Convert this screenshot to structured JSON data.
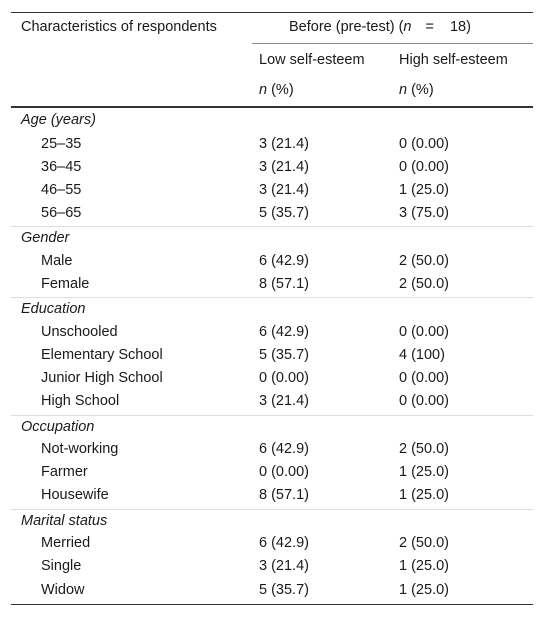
{
  "header": {
    "characteristics": "Characteristics of respondents",
    "before_prefix": "Before (pre-test) (",
    "n_symbol": "n",
    "equals": "=",
    "n_value": "18)",
    "low": "Low self-esteem",
    "high": "High self-esteem",
    "n_pct_n": "n",
    "n_pct_rest": " (%)"
  },
  "sections": [
    {
      "title": "Age (years)",
      "rows": [
        {
          "label": "25–35",
          "low": "3 (21.4)",
          "high": "0 (0.00)"
        },
        {
          "label": "36–45",
          "low": "3 (21.4)",
          "high": "0 (0.00)"
        },
        {
          "label": "46–55",
          "low": "3 (21.4)",
          "high": "1 (25.0)"
        },
        {
          "label": "56–65",
          "low": "5 (35.7)",
          "high": "3 (75.0)"
        }
      ]
    },
    {
      "title": "Gender",
      "rows": [
        {
          "label": "Male",
          "low": "6 (42.9)",
          "high": "2 (50.0)"
        },
        {
          "label": "Female",
          "low": "8 (57.1)",
          "high": "2 (50.0)"
        }
      ]
    },
    {
      "title": "Education",
      "rows": [
        {
          "label": "Unschooled",
          "low": "6 (42.9)",
          "high": "0 (0.00)"
        },
        {
          "label": "Elementary School",
          "low": "5 (35.7)",
          "high": "4 (100)"
        },
        {
          "label": "Junior High School",
          "low": "0 (0.00)",
          "high": "0 (0.00)"
        },
        {
          "label": "High School",
          "low": "3 (21.4)",
          "high": "0 (0.00)"
        }
      ]
    },
    {
      "title": "Occupation",
      "rows": [
        {
          "label": "Not-working",
          "low": "6 (42.9)",
          "high": "2 (50.0)"
        },
        {
          "label": "Farmer",
          "low": "0 (0.00)",
          "high": "1 (25.0)"
        },
        {
          "label": "Housewife",
          "low": "8 (57.1)",
          "high": "1 (25.0)"
        }
      ]
    },
    {
      "title": "Marital status",
      "rows": [
        {
          "label": "Merried",
          "low": "6 (42.9)",
          "high": "2 (50.0)"
        },
        {
          "label": "Single",
          "low": "3 (21.4)",
          "high": "1 (25.0)"
        },
        {
          "label": "Widow",
          "low": "5 (35.7)",
          "high": "1 (25.0)"
        }
      ]
    }
  ]
}
